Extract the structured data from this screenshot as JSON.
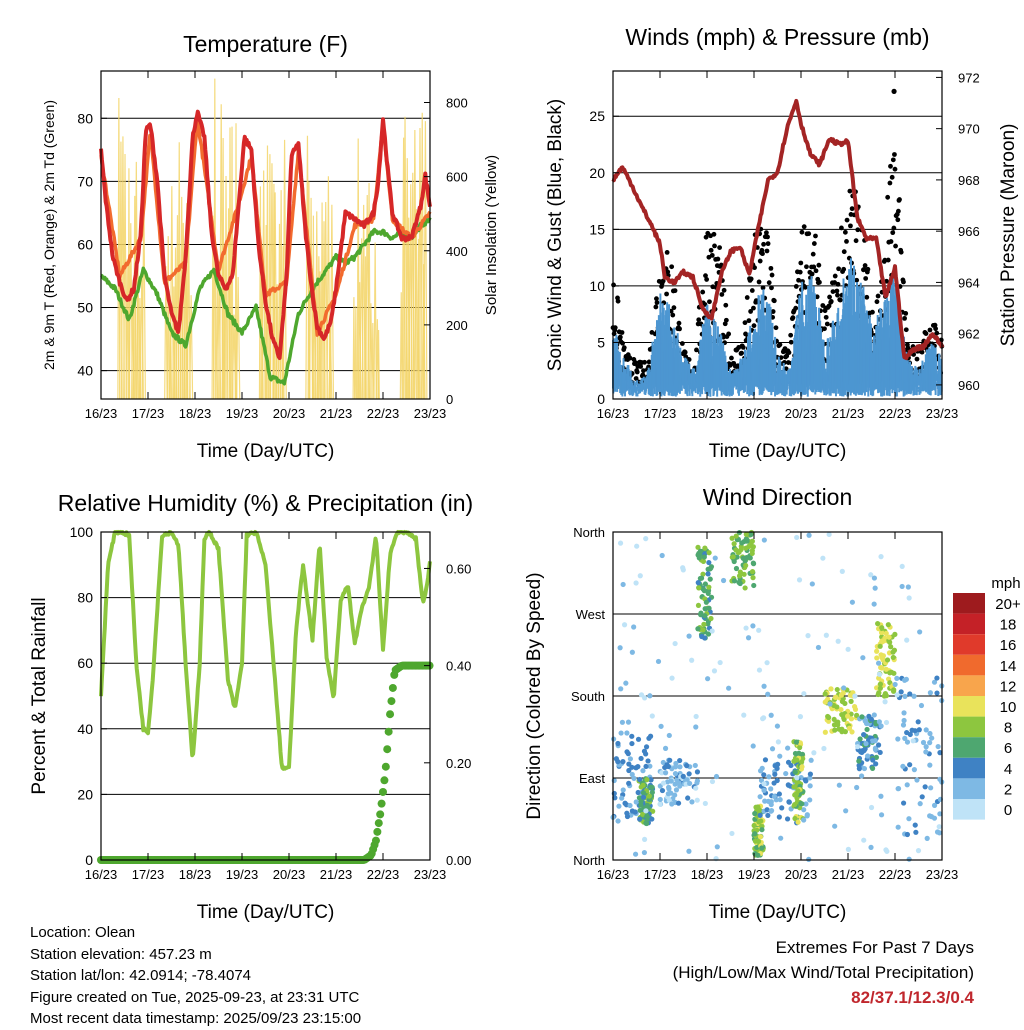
{
  "chart_data": [
    {
      "type": "line",
      "title": "Temperature (F)",
      "xlabel": "Time (Day/UTC)",
      "ylabel": "2m & 9m T (Red, Orange) & 2m Td (Green)",
      "y2label": "Solar Insolation (Yellow)",
      "x_ticks": [
        "16/23",
        "17/23",
        "18/23",
        "19/23",
        "20/23",
        "21/23",
        "22/23",
        "23/23"
      ],
      "ylim": [
        35.5,
        87.5
      ],
      "y_ticks": [
        40,
        50,
        60,
        70,
        80
      ],
      "y2lim": [
        0,
        885
      ],
      "y2_ticks": [
        0,
        200,
        400,
        600,
        800
      ],
      "grid": true,
      "series": [
        {
          "name": "2m T",
          "color": "#d62728",
          "x": [
            0,
            0.1,
            0.25,
            0.4,
            0.55,
            0.7,
            0.85,
            0.95,
            1.05,
            1.2,
            1.35,
            1.5,
            1.65,
            1.8,
            1.95,
            2.05,
            2.2,
            2.35,
            2.5,
            2.65,
            2.8,
            2.95,
            3.05,
            3.2,
            3.35,
            3.5,
            3.65,
            3.8,
            3.95,
            4.05,
            4.2,
            4.35,
            4.5,
            4.6,
            4.75,
            4.9,
            5.0,
            5.2,
            5.4,
            5.6,
            5.8,
            5.9,
            6.0,
            6.1,
            6.2,
            6.4,
            6.6,
            6.8,
            6.9,
            7.0
          ],
          "values": [
            75,
            67,
            58,
            54,
            51,
            53,
            62,
            78,
            79,
            70,
            55,
            49,
            46,
            58,
            77,
            81,
            77,
            62,
            55,
            53,
            55,
            68,
            77,
            75,
            60,
            51,
            45,
            42,
            55,
            74,
            76,
            62,
            52,
            47,
            45,
            48,
            53,
            65,
            64,
            63,
            65,
            70,
            80,
            72,
            65,
            61,
            61,
            66,
            71,
            66
          ]
        },
        {
          "name": "9m T",
          "color": "#f26b2e",
          "x": [
            0,
            0.4,
            0.85,
            1.05,
            1.35,
            1.8,
            2.05,
            2.5,
            2.95,
            3.2,
            3.5,
            3.95,
            4.2,
            4.6,
            5.0,
            5.4,
            5.8,
            6.0,
            6.2,
            6.6,
            7.0
          ],
          "values": [
            74,
            55,
            61,
            78,
            54,
            57,
            80,
            56,
            67,
            74,
            52,
            54,
            75,
            46,
            52,
            63,
            64,
            79,
            64,
            61,
            65
          ]
        },
        {
          "name": "2m Td",
          "color": "#4ea72e",
          "x": [
            0,
            0.3,
            0.6,
            0.9,
            1.2,
            1.5,
            1.8,
            2.1,
            2.4,
            2.7,
            3.0,
            3.3,
            3.6,
            3.9,
            4.2,
            4.5,
            4.8,
            5.0,
            5.2,
            5.4,
            5.6,
            5.8,
            6.0,
            6.2,
            6.4,
            6.6,
            6.8,
            7.0
          ],
          "values": [
            55,
            53,
            48,
            56,
            52,
            46,
            44,
            53,
            56,
            49,
            46,
            50,
            39,
            38,
            49,
            53,
            56,
            58,
            57,
            58,
            60,
            62,
            62,
            61,
            62,
            61,
            63,
            64
          ]
        }
      ],
      "solar_peaks": {
        "name": "Solar Insolation",
        "color": "#f3d568",
        "x": [
          0.5,
          0.75,
          1.5,
          1.75,
          2.5,
          2.75,
          3.5,
          3.75,
          4.5,
          4.75,
          5.5,
          5.75,
          6.5,
          6.75
        ],
        "values": [
          820,
          650,
          720,
          700,
          840,
          760,
          700,
          650,
          760,
          600,
          700,
          560,
          820,
          760
        ]
      }
    },
    {
      "type": "scatter",
      "title": "Winds (mph) & Pressure (mb)",
      "xlabel": "Time (Day/UTC)",
      "ylabel": "Sonic Wind & Gust (Blue, Black)",
      "y2label": "Station Pressure (Maroon)",
      "x_ticks": [
        "16/23",
        "17/23",
        "18/23",
        "19/23",
        "20/23",
        "21/23",
        "22/23",
        "23/23"
      ],
      "ylim": [
        0,
        29
      ],
      "y_ticks": [
        0,
        5,
        10,
        15,
        20,
        25
      ],
      "y2lim": [
        959.45,
        972.25
      ],
      "y2_ticks": [
        960,
        962,
        964,
        966,
        968,
        970,
        972
      ],
      "grid": true,
      "series": [
        {
          "name": "Sonic Wind",
          "color": "#4d96d1",
          "x": [
            0,
            0.25,
            0.5,
            0.75,
            1.0,
            1.25,
            1.5,
            1.75,
            2.0,
            2.25,
            2.5,
            2.75,
            3.0,
            3.25,
            3.5,
            3.75,
            4.0,
            4.25,
            4.5,
            4.75,
            5.0,
            5.25,
            5.5,
            5.75,
            6.0,
            6.25,
            6.5,
            6.75,
            7.0
          ],
          "values": [
            5,
            3,
            1,
            2,
            8,
            6,
            3,
            2,
            7,
            5,
            2,
            3,
            6,
            9,
            3,
            2,
            8,
            9,
            4,
            6,
            10,
            9,
            5,
            7,
            9,
            3,
            2,
            4,
            3
          ]
        },
        {
          "name": "Gust",
          "color": "#000000",
          "x": [
            0,
            0.25,
            0.5,
            0.75,
            1.0,
            1.25,
            1.5,
            1.75,
            2.0,
            2.25,
            2.5,
            2.75,
            3.0,
            3.25,
            3.5,
            3.75,
            4.0,
            4.25,
            4.5,
            4.75,
            5.0,
            5.25,
            5.5,
            5.75,
            6.0,
            6.25,
            6.5,
            6.75,
            7.0
          ],
          "values": [
            11,
            4,
            3,
            3,
            13,
            12,
            4,
            3,
            16,
            13,
            4,
            5,
            13,
            17,
            5,
            4,
            14,
            15,
            7,
            11,
            18,
            17,
            8,
            11,
            27,
            5,
            4,
            7,
            5
          ]
        },
        {
          "name": "Station Pressure",
          "color": "#a32424",
          "x": [
            0,
            0.2,
            0.4,
            0.6,
            0.8,
            1.0,
            1.1,
            1.3,
            1.5,
            1.7,
            1.9,
            2.1,
            2.3,
            2.5,
            2.7,
            2.9,
            3.1,
            3.3,
            3.5,
            3.7,
            3.9,
            4.0,
            4.2,
            4.4,
            4.6,
            4.8,
            5.0,
            5.2,
            5.4,
            5.6,
            5.8,
            6.0,
            6.2,
            6.4,
            6.6,
            6.8,
            7.0
          ],
          "values": [
            968,
            968.5,
            967.8,
            967,
            966.3,
            965.5,
            964.2,
            964,
            964.4,
            964.2,
            963,
            962.6,
            964.3,
            965.2,
            965.4,
            964.3,
            966.2,
            968,
            968.3,
            970,
            971.1,
            970.2,
            969,
            968.6,
            969.6,
            969.4,
            969.5,
            966.5,
            965.7,
            965.7,
            963.4,
            964.6,
            961,
            961.4,
            961.5,
            962,
            961.5
          ]
        }
      ]
    },
    {
      "type": "line",
      "title": "Relative Humidity (%) & Precipitation (in)",
      "xlabel": "Time (Day/UTC)",
      "ylabel": "Percent & Total Rainfall",
      "x_ticks": [
        "16/23",
        "17/23",
        "18/23",
        "19/23",
        "20/23",
        "21/23",
        "22/23",
        "23/23"
      ],
      "ylim": [
        0,
        100
      ],
      "y_ticks": [
        0,
        20,
        40,
        60,
        80,
        100
      ],
      "y2lim": [
        0,
        0.675
      ],
      "y2_ticks": [
        "0.00",
        "0.20",
        "0.40",
        "0.60"
      ],
      "grid": true,
      "series": [
        {
          "name": "Relative Humidity",
          "color": "#8dc63f",
          "x": [
            0,
            0.15,
            0.3,
            0.45,
            0.6,
            0.75,
            0.9,
            1.0,
            1.1,
            1.3,
            1.5,
            1.65,
            1.8,
            1.95,
            2.1,
            2.2,
            2.3,
            2.5,
            2.7,
            2.85,
            3.0,
            3.1,
            3.3,
            3.5,
            3.7,
            3.85,
            4.0,
            4.15,
            4.3,
            4.5,
            4.65,
            4.8,
            4.95,
            5.1,
            5.25,
            5.4,
            5.55,
            5.7,
            5.85,
            6.0,
            6.15,
            6.3,
            6.5,
            6.7,
            6.85,
            6.95,
            7.0
          ],
          "values": [
            50,
            90,
            100,
            100,
            99,
            60,
            40,
            39,
            55,
            99,
            100,
            96,
            60,
            30,
            60,
            98,
            100,
            95,
            55,
            46,
            60,
            99,
            100,
            90,
            55,
            28,
            28,
            70,
            90,
            67,
            97,
            62,
            49,
            79,
            84,
            66,
            77,
            83,
            99,
            64,
            93,
            100,
            100,
            98,
            78,
            85,
            91
          ]
        },
        {
          "name": "Total Precipitation",
          "color": "#4ea72e",
          "axis": "right",
          "x": [
            0,
            5.6,
            5.75,
            5.85,
            5.95,
            6.05,
            6.15,
            6.25,
            6.4,
            6.5,
            7.0
          ],
          "values": [
            0,
            0,
            0.01,
            0.04,
            0.1,
            0.18,
            0.3,
            0.39,
            0.4,
            0.4,
            0.4
          ]
        }
      ]
    },
    {
      "type": "scatter",
      "title": "Wind Direction",
      "xlabel": "Time (Day/UTC)",
      "ylabel": "Direction (Colored By Speed)",
      "x_ticks": [
        "16/23",
        "17/23",
        "18/23",
        "19/23",
        "20/23",
        "21/23",
        "22/23",
        "23/23"
      ],
      "y_ticks": [
        "North",
        "East",
        "South",
        "West",
        "North"
      ],
      "ylim": [
        0,
        360
      ],
      "grid": true,
      "legend": {
        "title": "mph",
        "labels": [
          "20+",
          "18",
          "16",
          "14",
          "12",
          "10",
          "8",
          "6",
          "4",
          "2",
          "0"
        ],
        "colors": [
          "#9e1b1e",
          "#c42127",
          "#e03a2b",
          "#f06a2d",
          "#f8a54c",
          "#e9e35b",
          "#8dc63f",
          "#4ea770",
          "#3f82c4",
          "#7eb9e4",
          "#bfe3f7"
        ],
        "position": "right"
      },
      "clusters": [
        {
          "x": [
            0.0,
            0.8
          ],
          "dir": [
            45,
            140
          ],
          "speed": 3
        },
        {
          "x": [
            0.55,
            0.85
          ],
          "dir": [
            40,
            90
          ],
          "speed": 6
        },
        {
          "x": [
            1.0,
            1.8
          ],
          "dir": [
            60,
            110
          ],
          "speed": 2
        },
        {
          "x": [
            1.8,
            2.1
          ],
          "dir": [
            240,
            345
          ],
          "speed": 6
        },
        {
          "x": [
            2.5,
            3.0
          ],
          "dir": [
            295,
            360
          ],
          "speed": 7
        },
        {
          "x": [
            3.0,
            3.2
          ],
          "dir": [
            5,
            60
          ],
          "speed": 8
        },
        {
          "x": [
            3.1,
            4.2
          ],
          "dir": [
            40,
            110
          ],
          "speed": 3
        },
        {
          "x": [
            3.85,
            4.05
          ],
          "dir": [
            40,
            130
          ],
          "speed": 8
        },
        {
          "x": [
            4.5,
            5.2
          ],
          "dir": [
            140,
            190
          ],
          "speed": 9
        },
        {
          "x": [
            5.2,
            5.7
          ],
          "dir": [
            100,
            160
          ],
          "speed": 4
        },
        {
          "x": [
            5.6,
            6.0
          ],
          "dir": [
            180,
            260
          ],
          "speed": 9
        },
        {
          "x": [
            6.0,
            7.0
          ],
          "dir": [
            20,
            200
          ],
          "speed": 3
        },
        {
          "x": [
            0.0,
            7.0
          ],
          "dir": [
            0,
            360
          ],
          "speed": 1
        }
      ]
    }
  ],
  "footer": {
    "location": "Location: Olean",
    "elevation": "Station elevation: 457.23 m",
    "latlon": "Station lat/lon: 42.0914; -78.4074",
    "created": "Figure created on Tue, 2025-09-23, at 23:31 UTC",
    "recent": "Most recent data timestamp: 2025/09/23 23:15:00"
  },
  "extremes": {
    "line1": "Extremes For Past 7 Days",
    "line2": "(High/Low/Max Wind/Total Precipitation)",
    "values": "82/37.1/12.3/0.4"
  }
}
